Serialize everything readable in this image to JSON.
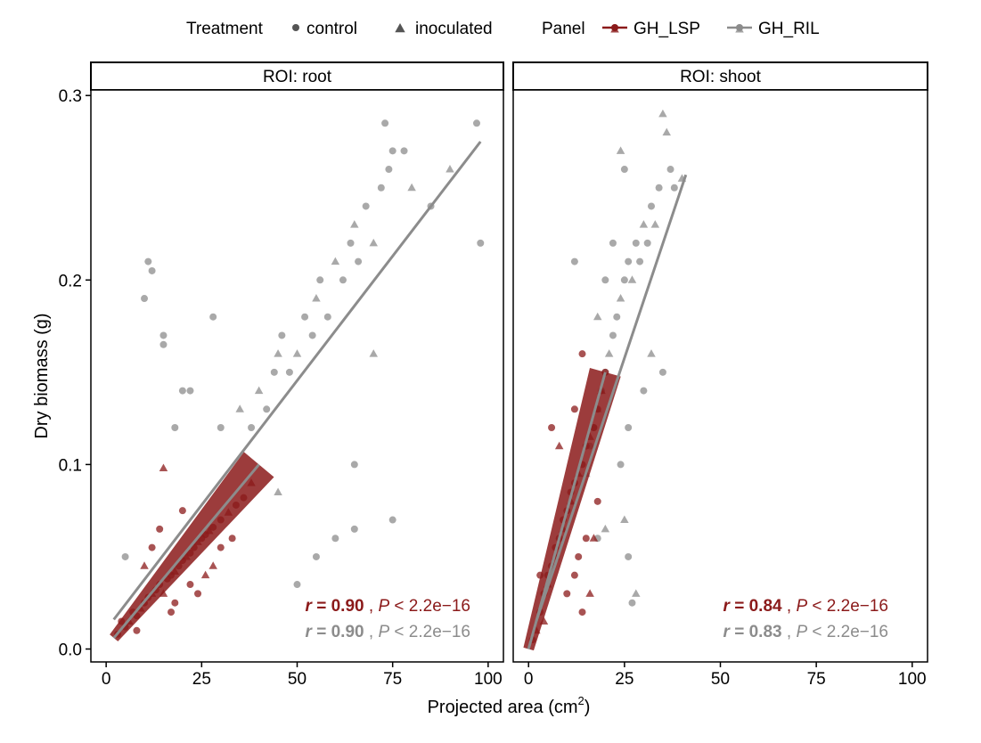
{
  "legend": {
    "treatment_title": "Treatment",
    "treatment_items": [
      {
        "label": "control",
        "shape": "circle"
      },
      {
        "label": "inoculated",
        "shape": "triangle"
      }
    ],
    "panel_title": "Panel",
    "panel_items": [
      {
        "label": "GH_LSP",
        "color": "#8b1a1a"
      },
      {
        "label": "GH_RIL",
        "color": "#8c8c8c"
      }
    ]
  },
  "colors": {
    "GH_LSP": "#8b1a1a",
    "GH_RIL": "#8c8c8c"
  },
  "chart_data": [
    {
      "type": "scatter",
      "facet": "ROI: root",
      "xlabel": "Projected area (cm",
      "xlabel_sup": "2",
      "xlabel_close": ")",
      "ylabel": "Dry biomass (g)",
      "xlim": [
        -4,
        104
      ],
      "ylim": [
        -0.007,
        0.303
      ],
      "xticks": [
        0,
        25,
        50,
        75,
        100
      ],
      "xtick_labels": [
        "0",
        "25",
        "50",
        "75",
        "100"
      ],
      "yticks": [
        0.0,
        0.1,
        0.2,
        0.3
      ],
      "ytick_labels": [
        "0.0",
        "0.1",
        "0.2",
        "0.3"
      ],
      "grid": false,
      "series": [
        {
          "name": "GH_LSP",
          "points": [
            [
              3,
              0.008,
              "c"
            ],
            [
              5,
              0.012,
              "c"
            ],
            [
              6,
              0.015,
              "t"
            ],
            [
              7,
              0.02,
              "c"
            ],
            [
              8,
              0.018,
              "c"
            ],
            [
              9,
              0.022,
              "t"
            ],
            [
              10,
              0.025,
              "c"
            ],
            [
              11,
              0.028,
              "c"
            ],
            [
              12,
              0.03,
              "t"
            ],
            [
              13,
              0.032,
              "c"
            ],
            [
              14,
              0.035,
              "c"
            ],
            [
              15,
              0.03,
              "t"
            ],
            [
              16,
              0.038,
              "c"
            ],
            [
              17,
              0.04,
              "c"
            ],
            [
              18,
              0.042,
              "t"
            ],
            [
              19,
              0.045,
              "c"
            ],
            [
              20,
              0.048,
              "c"
            ],
            [
              21,
              0.05,
              "t"
            ],
            [
              22,
              0.052,
              "c"
            ],
            [
              23,
              0.055,
              "c"
            ],
            [
              24,
              0.058,
              "t"
            ],
            [
              25,
              0.06,
              "c"
            ],
            [
              26,
              0.062,
              "c"
            ],
            [
              27,
              0.064,
              "t"
            ],
            [
              28,
              0.066,
              "c"
            ],
            [
              30,
              0.07,
              "c"
            ],
            [
              32,
              0.074,
              "t"
            ],
            [
              34,
              0.078,
              "c"
            ],
            [
              36,
              0.082,
              "c"
            ],
            [
              38,
              0.09,
              "t"
            ],
            [
              14,
              0.065,
              "c"
            ],
            [
              15,
              0.098,
              "t"
            ],
            [
              20,
              0.075,
              "c"
            ],
            [
              12,
              0.055,
              "c"
            ],
            [
              10,
              0.045,
              "t"
            ],
            [
              18,
              0.025,
              "c"
            ],
            [
              22,
              0.035,
              "c"
            ],
            [
              28,
              0.045,
              "t"
            ],
            [
              30,
              0.055,
              "c"
            ],
            [
              8,
              0.01,
              "c"
            ],
            [
              24,
              0.03,
              "c"
            ],
            [
              4,
              0.015,
              "c"
            ],
            [
              26,
              0.04,
              "t"
            ],
            [
              17,
              0.02,
              "c"
            ],
            [
              33,
              0.06,
              "c"
            ]
          ]
        },
        {
          "name": "GH_RIL",
          "points": [
            [
              5,
              0.05,
              "c"
            ],
            [
              10,
              0.19,
              "c"
            ],
            [
              11,
              0.21,
              "c"
            ],
            [
              12,
              0.205,
              "c"
            ],
            [
              15,
              0.17,
              "c"
            ],
            [
              15,
              0.165,
              "c"
            ],
            [
              18,
              0.12,
              "c"
            ],
            [
              20,
              0.14,
              "c"
            ],
            [
              22,
              0.14,
              "c"
            ],
            [
              28,
              0.18,
              "c"
            ],
            [
              30,
              0.12,
              "c"
            ],
            [
              35,
              0.13,
              "t"
            ],
            [
              38,
              0.12,
              "c"
            ],
            [
              40,
              0.14,
              "t"
            ],
            [
              42,
              0.13,
              "c"
            ],
            [
              44,
              0.15,
              "c"
            ],
            [
              45,
              0.16,
              "t"
            ],
            [
              46,
              0.17,
              "c"
            ],
            [
              48,
              0.15,
              "c"
            ],
            [
              50,
              0.16,
              "t"
            ],
            [
              52,
              0.18,
              "c"
            ],
            [
              54,
              0.17,
              "c"
            ],
            [
              55,
              0.19,
              "t"
            ],
            [
              56,
              0.2,
              "c"
            ],
            [
              58,
              0.18,
              "c"
            ],
            [
              60,
              0.21,
              "t"
            ],
            [
              62,
              0.2,
              "c"
            ],
            [
              64,
              0.22,
              "c"
            ],
            [
              65,
              0.23,
              "t"
            ],
            [
              66,
              0.21,
              "c"
            ],
            [
              68,
              0.24,
              "c"
            ],
            [
              70,
              0.22,
              "t"
            ],
            [
              72,
              0.25,
              "c"
            ],
            [
              74,
              0.26,
              "c"
            ],
            [
              75,
              0.27,
              "c"
            ],
            [
              78,
              0.27,
              "c"
            ],
            [
              80,
              0.25,
              "t"
            ],
            [
              85,
              0.24,
              "c"
            ],
            [
              90,
              0.26,
              "t"
            ],
            [
              97,
              0.285,
              "c"
            ],
            [
              98,
              0.22,
              "c"
            ],
            [
              73,
              0.285,
              "c"
            ],
            [
              65,
              0.1,
              "c"
            ],
            [
              55,
              0.05,
              "c"
            ],
            [
              60,
              0.06,
              "c"
            ],
            [
              65,
              0.065,
              "c"
            ],
            [
              75,
              0.07,
              "c"
            ],
            [
              50,
              0.035,
              "c"
            ],
            [
              45,
              0.085,
              "t"
            ],
            [
              70,
              0.16,
              "t"
            ]
          ]
        }
      ],
      "fits": [
        {
          "name": "GH_LSP",
          "x": [
            2,
            40
          ],
          "y": [
            0.006,
            0.1
          ]
        },
        {
          "name": "GH_RIL",
          "x": [
            2,
            98
          ],
          "y": [
            0.016,
            0.275
          ]
        }
      ],
      "annotations": [
        {
          "series": "GH_LSP",
          "r_label": "r",
          "r_value": "= 0.90",
          "sep": ",",
          "p_label": "P",
          "p_value": "< 2.2e−16"
        },
        {
          "series": "GH_RIL",
          "r_label": "r",
          "r_value": "= 0.90",
          "sep": ",",
          "p_label": "P",
          "p_value": "< 2.2e−16"
        }
      ]
    },
    {
      "type": "scatter",
      "facet": "ROI: shoot",
      "xlabel": "Projected area (cm",
      "xlabel_sup": "2",
      "xlabel_close": ")",
      "ylabel": "Dry biomass (g)",
      "xlim": [
        -4,
        104
      ],
      "ylim": [
        -0.007,
        0.303
      ],
      "xticks": [
        0,
        25,
        50,
        75,
        100
      ],
      "xtick_labels": [
        "0",
        "25",
        "50",
        "75",
        "100"
      ],
      "yticks": [
        0.0,
        0.1,
        0.2,
        0.3
      ],
      "ytick_labels": [
        "0.0",
        "0.1",
        "0.2",
        "0.3"
      ],
      "grid": false,
      "series": [
        {
          "name": "GH_LSP",
          "points": [
            [
              1,
              0.005,
              "c"
            ],
            [
              2,
              0.01,
              "t"
            ],
            [
              3,
              0.02,
              "c"
            ],
            [
              4,
              0.03,
              "c"
            ],
            [
              5,
              0.035,
              "t"
            ],
            [
              5,
              0.04,
              "c"
            ],
            [
              6,
              0.045,
              "c"
            ],
            [
              7,
              0.05,
              "t"
            ],
            [
              7,
              0.055,
              "c"
            ],
            [
              8,
              0.06,
              "c"
            ],
            [
              9,
              0.065,
              "t"
            ],
            [
              9,
              0.07,
              "c"
            ],
            [
              10,
              0.075,
              "c"
            ],
            [
              11,
              0.08,
              "t"
            ],
            [
              11,
              0.085,
              "c"
            ],
            [
              12,
              0.09,
              "c"
            ],
            [
              13,
              0.095,
              "t"
            ],
            [
              14,
              0.1,
              "c"
            ],
            [
              15,
              0.11,
              "c"
            ],
            [
              16,
              0.115,
              "t"
            ],
            [
              17,
              0.12,
              "c"
            ],
            [
              18,
              0.13,
              "c"
            ],
            [
              19,
              0.14,
              "t"
            ],
            [
              20,
              0.15,
              "c"
            ],
            [
              14,
              0.16,
              "c"
            ],
            [
              12,
              0.13,
              "c"
            ],
            [
              6,
              0.12,
              "c"
            ],
            [
              8,
              0.11,
              "t"
            ],
            [
              13,
              0.05,
              "c"
            ],
            [
              15,
              0.06,
              "c"
            ],
            [
              16,
              0.03,
              "t"
            ],
            [
              14,
              0.02,
              "c"
            ],
            [
              10,
              0.03,
              "c"
            ],
            [
              3,
              0.04,
              "c"
            ],
            [
              4,
              0.015,
              "t"
            ],
            [
              12,
              0.04,
              "c"
            ],
            [
              18,
              0.08,
              "c"
            ],
            [
              17,
              0.06,
              "t"
            ]
          ]
        },
        {
          "name": "GH_RIL",
          "points": [
            [
              15,
              0.095,
              "t"
            ],
            [
              16,
              0.11,
              "c"
            ],
            [
              17,
              0.12,
              "c"
            ],
            [
              18,
              0.13,
              "t"
            ],
            [
              19,
              0.14,
              "c"
            ],
            [
              20,
              0.15,
              "c"
            ],
            [
              21,
              0.16,
              "t"
            ],
            [
              22,
              0.17,
              "c"
            ],
            [
              23,
              0.18,
              "c"
            ],
            [
              24,
              0.19,
              "t"
            ],
            [
              25,
              0.2,
              "c"
            ],
            [
              26,
              0.21,
              "c"
            ],
            [
              27,
              0.2,
              "t"
            ],
            [
              28,
              0.22,
              "c"
            ],
            [
              29,
              0.21,
              "c"
            ],
            [
              30,
              0.23,
              "t"
            ],
            [
              31,
              0.22,
              "c"
            ],
            [
              32,
              0.24,
              "c"
            ],
            [
              33,
              0.23,
              "t"
            ],
            [
              34,
              0.25,
              "c"
            ],
            [
              35,
              0.29,
              "t"
            ],
            [
              36,
              0.28,
              "t"
            ],
            [
              37,
              0.26,
              "c"
            ],
            [
              38,
              0.25,
              "c"
            ],
            [
              40,
              0.255,
              "t"
            ],
            [
              24,
              0.27,
              "t"
            ],
            [
              25,
              0.26,
              "c"
            ],
            [
              20,
              0.2,
              "c"
            ],
            [
              22,
              0.22,
              "c"
            ],
            [
              18,
              0.18,
              "t"
            ],
            [
              26,
              0.12,
              "c"
            ],
            [
              24,
              0.1,
              "c"
            ],
            [
              25,
              0.07,
              "t"
            ],
            [
              26,
              0.05,
              "c"
            ],
            [
              28,
              0.03,
              "t"
            ],
            [
              27,
              0.025,
              "c"
            ],
            [
              20,
              0.065,
              "t"
            ],
            [
              30,
              0.14,
              "c"
            ],
            [
              32,
              0.16,
              "t"
            ],
            [
              35,
              0.15,
              "c"
            ],
            [
              12,
              0.21,
              "c"
            ],
            [
              18,
              0.06,
              "c"
            ]
          ]
        }
      ],
      "fits": [
        {
          "name": "GH_LSP",
          "x": [
            0,
            20
          ],
          "y": [
            0.0,
            0.15
          ]
        },
        {
          "name": "GH_RIL",
          "x": [
            2,
            41
          ],
          "y": [
            0.015,
            0.257
          ]
        }
      ],
      "annotations": [
        {
          "series": "GH_LSP",
          "r_label": "r",
          "r_value": "= 0.84",
          "sep": ",",
          "p_label": "P",
          "p_value": "< 2.2e−16"
        },
        {
          "series": "GH_RIL",
          "r_label": "r",
          "r_value": "= 0.83",
          "sep": ",",
          "p_label": "P",
          "p_value": "< 2.2e−16"
        }
      ]
    }
  ]
}
